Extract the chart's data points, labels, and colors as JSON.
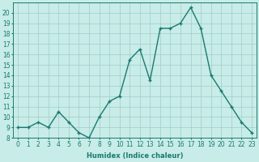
{
  "x": [
    0,
    1,
    2,
    3,
    4,
    5,
    6,
    7,
    8,
    9,
    10,
    11,
    12,
    13,
    14,
    15,
    16,
    17,
    18,
    19,
    20,
    21,
    22,
    23
  ],
  "y": [
    9.0,
    9.0,
    9.5,
    9.0,
    10.5,
    9.5,
    8.5,
    8.0,
    10.0,
    11.5,
    12.0,
    15.5,
    16.5,
    13.5,
    18.5,
    18.5,
    19.0,
    20.5,
    18.5,
    14.0,
    12.5,
    11.0,
    9.5,
    8.5
  ],
  "line_color": "#1a7a6e",
  "marker": "+",
  "bg_color": "#c8ece8",
  "grid_color": "#a0ccc8",
  "xlabel": "Humidex (Indice chaleur)",
  "xlabel_fontsize": 6,
  "tick_fontsize": 5.5,
  "ylim": [
    8,
    21
  ],
  "yticks": [
    8,
    9,
    10,
    11,
    12,
    13,
    14,
    15,
    16,
    17,
    18,
    19,
    20
  ],
  "xticks": [
    0,
    1,
    2,
    3,
    4,
    5,
    6,
    7,
    8,
    9,
    10,
    11,
    12,
    13,
    14,
    15,
    16,
    17,
    18,
    19,
    20,
    21,
    22,
    23
  ],
  "linewidth": 1.0,
  "markersize": 3.5
}
